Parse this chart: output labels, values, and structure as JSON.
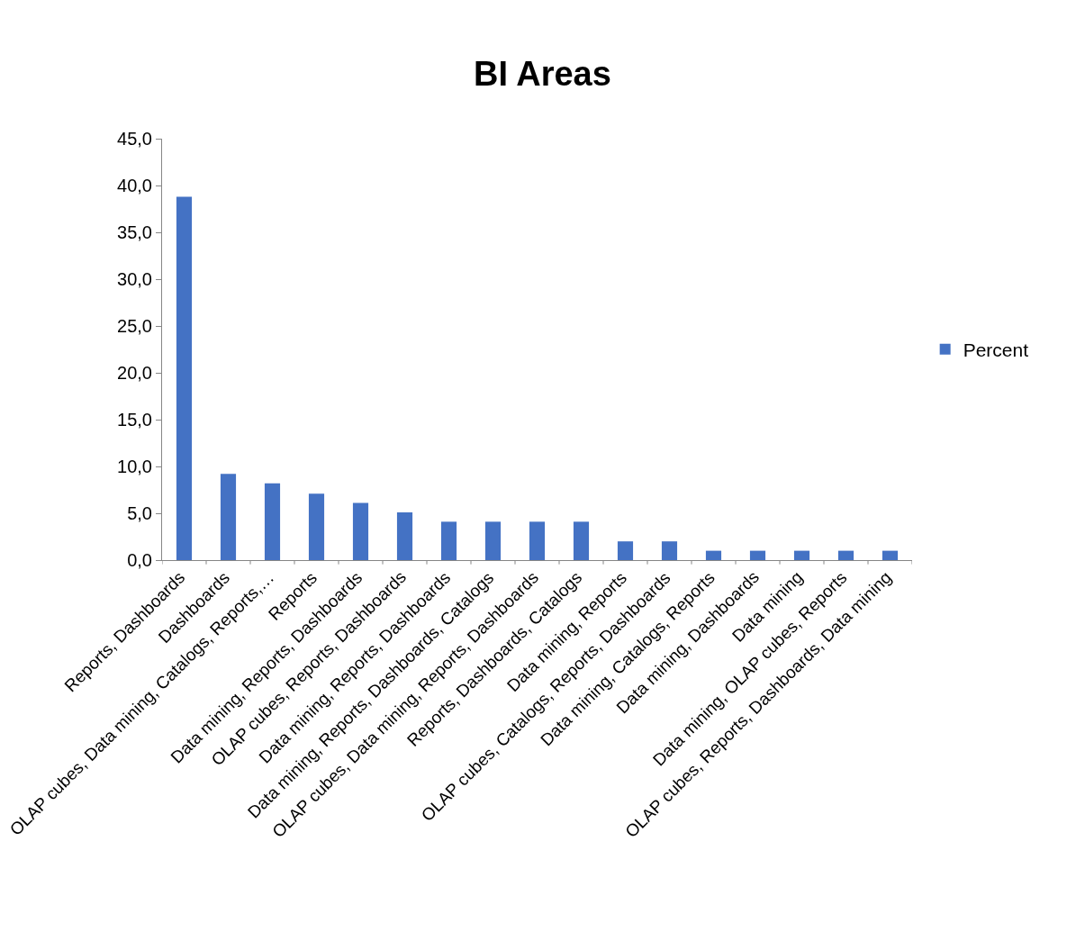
{
  "chart_data": {
    "type": "bar",
    "title": "BI Areas",
    "categories": [
      "Reports, Dashboards",
      "Dashboards",
      "OLAP cubes, Data mining, Catalogs, Reports,…",
      "Reports",
      "Data mining, Reports, Dashboards",
      "OLAP cubes, Reports, Dashboards",
      "Data mining, Reports, Dashboards",
      "Data mining, Reports, Dashboards, Catalogs",
      "OLAP cubes, Data mining, Reports, Dashboards",
      "Reports, Dashboards, Catalogs",
      "Data mining, Reports",
      "OLAP cubes, Catalogs, Reports, Dashboards",
      "Data mining, Catalogs, Reports",
      "Data mining, Dashboards",
      "Data mining",
      "Data mining, OLAP cubes, Reports",
      "OLAP cubes, Reports, Dashboards, Data mining"
    ],
    "series": [
      {
        "name": "Percent",
        "color": "#4472c4",
        "values": [
          38.8,
          9.2,
          8.2,
          7.1,
          6.1,
          5.1,
          4.1,
          4.1,
          4.1,
          4.1,
          2.0,
          2.0,
          1.0,
          1.0,
          1.0,
          1.0,
          1.0
        ]
      }
    ],
    "ylim": [
      0,
      45
    ],
    "yticks": [
      {
        "value": 0,
        "label": "0,0"
      },
      {
        "value": 5,
        "label": "5,0"
      },
      {
        "value": 10,
        "label": "10,0"
      },
      {
        "value": 15,
        "label": "15,0"
      },
      {
        "value": 20,
        "label": "20,0"
      },
      {
        "value": 25,
        "label": "25,0"
      },
      {
        "value": 30,
        "label": "30,0"
      },
      {
        "value": 35,
        "label": "35,0"
      },
      {
        "value": 40,
        "label": "40,0"
      },
      {
        "value": 45,
        "label": "45,0"
      }
    ],
    "legend": "right"
  }
}
